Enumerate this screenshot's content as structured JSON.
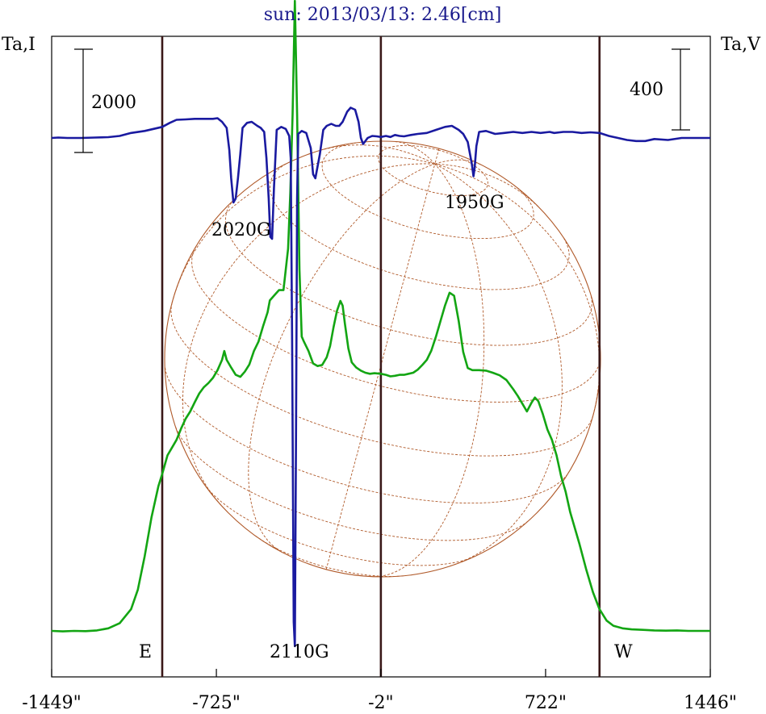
{
  "chart_data": {
    "type": "line",
    "title": "sun: 2013/03/13: 2.46[cm]",
    "ylabel_left": "Ta,I",
    "ylabel_right": "Ta,V",
    "xlim": [
      -1449,
      1446
    ],
    "x_ticks": [
      {
        "value": -1449,
        "label": "-1449\""
      },
      {
        "value": -725,
        "label": "-725\""
      },
      {
        "value": -2,
        "label": "-2\""
      },
      {
        "value": 722,
        "label": "722\""
      },
      {
        "value": 1446,
        "label": "1446\""
      }
    ],
    "limb_lines_x": [
      -963,
      -2,
      959
    ],
    "limb_labels": {
      "east": "E",
      "west": "W"
    },
    "scale_bars": {
      "intensity": {
        "label": "2000",
        "value": 2000
      },
      "polarization": {
        "label": "400",
        "value": 400
      }
    },
    "annotations": [
      {
        "text": "2020G",
        "x": -640
      },
      {
        "text": "1950G",
        "x": 440
      },
      {
        "text": "2110G",
        "x": -350
      }
    ],
    "colors": {
      "intensity": "#13a513",
      "polarization": "#1a1aa0",
      "limb_line": "#3a1818",
      "disk": "#b05a2a",
      "title": "#1a1a8c"
    },
    "series": [
      {
        "key": "intensity",
        "units": "relative (scale bar 2000)",
        "points": [
          [
            -1449,
            0
          ],
          [
            -1400,
            -10
          ],
          [
            -1350,
            0
          ],
          [
            -1300,
            -5
          ],
          [
            -1250,
            10
          ],
          [
            -1200,
            50
          ],
          [
            -1150,
            150
          ],
          [
            -1100,
            420
          ],
          [
            -1070,
            800
          ],
          [
            -1040,
            1450
          ],
          [
            -1010,
            2200
          ],
          [
            -980,
            2800
          ],
          [
            -963,
            3040
          ],
          [
            -940,
            3400
          ],
          [
            -920,
            3550
          ],
          [
            -900,
            3700
          ],
          [
            -880,
            3920
          ],
          [
            -860,
            4110
          ],
          [
            -840,
            4250
          ],
          [
            -820,
            4430
          ],
          [
            -800,
            4600
          ],
          [
            -780,
            4720
          ],
          [
            -760,
            4800
          ],
          [
            -740,
            4900
          ],
          [
            -720,
            5050
          ],
          [
            -700,
            5250
          ],
          [
            -690,
            5420
          ],
          [
            -680,
            5250
          ],
          [
            -660,
            5100
          ],
          [
            -640,
            4960
          ],
          [
            -620,
            4920
          ],
          [
            -600,
            5020
          ],
          [
            -580,
            5160
          ],
          [
            -560,
            5420
          ],
          [
            -540,
            5600
          ],
          [
            -520,
            5900
          ],
          [
            -500,
            6170
          ],
          [
            -490,
            6400
          ],
          [
            -470,
            6500
          ],
          [
            -450,
            6600
          ],
          [
            -430,
            6600
          ],
          [
            -410,
            7400
          ],
          [
            -400,
            8500
          ],
          [
            -390,
            10000
          ],
          [
            -380,
            12200
          ],
          [
            -370,
            10000
          ],
          [
            -360,
            7000
          ],
          [
            -350,
            5700
          ],
          [
            -340,
            5600
          ],
          [
            -320,
            5420
          ],
          [
            -300,
            5180
          ],
          [
            -280,
            5130
          ],
          [
            -260,
            5150
          ],
          [
            -240,
            5300
          ],
          [
            -225,
            5520
          ],
          [
            -210,
            5880
          ],
          [
            -195,
            6200
          ],
          [
            -180,
            6390
          ],
          [
            -170,
            6300
          ],
          [
            -160,
            5950
          ],
          [
            -145,
            5470
          ],
          [
            -130,
            5200
          ],
          [
            -110,
            5100
          ],
          [
            -90,
            5040
          ],
          [
            -70,
            5000
          ],
          [
            -50,
            4980
          ],
          [
            -30,
            4990
          ],
          [
            -2,
            4980
          ],
          [
            20,
            4960
          ],
          [
            40,
            4930
          ],
          [
            60,
            4940
          ],
          [
            80,
            4960
          ],
          [
            100,
            4960
          ],
          [
            120,
            4980
          ],
          [
            140,
            5000
          ],
          [
            160,
            5060
          ],
          [
            180,
            5150
          ],
          [
            200,
            5250
          ],
          [
            220,
            5430
          ],
          [
            240,
            5700
          ],
          [
            260,
            6000
          ],
          [
            280,
            6300
          ],
          [
            300,
            6550
          ],
          [
            320,
            6490
          ],
          [
            340,
            6000
          ],
          [
            360,
            5400
          ],
          [
            380,
            5090
          ],
          [
            400,
            5050
          ],
          [
            430,
            5050
          ],
          [
            460,
            5040
          ],
          [
            490,
            5000
          ],
          [
            520,
            4950
          ],
          [
            550,
            4860
          ],
          [
            580,
            4680
          ],
          [
            600,
            4550
          ],
          [
            620,
            4400
          ],
          [
            640,
            4250
          ],
          [
            660,
            4420
          ],
          [
            675,
            4520
          ],
          [
            690,
            4450
          ],
          [
            710,
            4200
          ],
          [
            730,
            3900
          ],
          [
            750,
            3700
          ],
          [
            770,
            3400
          ],
          [
            790,
            3000
          ],
          [
            810,
            2700
          ],
          [
            830,
            2300
          ],
          [
            850,
            2000
          ],
          [
            870,
            1700
          ],
          [
            900,
            1200
          ],
          [
            930,
            750
          ],
          [
            959,
            420
          ],
          [
            990,
            200
          ],
          [
            1020,
            100
          ],
          [
            1060,
            50
          ],
          [
            1100,
            30
          ],
          [
            1150,
            20
          ],
          [
            1200,
            10
          ],
          [
            1250,
            5
          ],
          [
            1300,
            10
          ],
          [
            1350,
            0
          ],
          [
            1400,
            0
          ],
          [
            1446,
            0
          ]
        ]
      },
      {
        "key": "polarization",
        "units": "relative (scale bar 400)",
        "points": [
          [
            -1449,
            0
          ],
          [
            -1420,
            2
          ],
          [
            -1380,
            0
          ],
          [
            -1320,
            0
          ],
          [
            -1260,
            2
          ],
          [
            -1200,
            4
          ],
          [
            -1150,
            10
          ],
          [
            -1100,
            25
          ],
          [
            -1040,
            35
          ],
          [
            -963,
            55
          ],
          [
            -930,
            75
          ],
          [
            -900,
            90
          ],
          [
            -860,
            92
          ],
          [
            -820,
            95
          ],
          [
            -780,
            95
          ],
          [
            -740,
            95
          ],
          [
            -720,
            98
          ],
          [
            -700,
            80
          ],
          [
            -680,
            50
          ],
          [
            -668,
            -60
          ],
          [
            -660,
            -200
          ],
          [
            -650,
            -320
          ],
          [
            -640,
            -300
          ],
          [
            -630,
            -200
          ],
          [
            -620,
            -80
          ],
          [
            -610,
            50
          ],
          [
            -590,
            75
          ],
          [
            -570,
            80
          ],
          [
            -545,
            60
          ],
          [
            -530,
            50
          ],
          [
            -515,
            30
          ],
          [
            -505,
            -100
          ],
          [
            -495,
            -300
          ],
          [
            -488,
            -490
          ],
          [
            -480,
            -500
          ],
          [
            -472,
            -250
          ],
          [
            -460,
            40
          ],
          [
            -440,
            55
          ],
          [
            -420,
            45
          ],
          [
            -405,
            10
          ],
          [
            -398,
            -100
          ],
          [
            -392,
            -1000
          ],
          [
            -385,
            -2400
          ],
          [
            -380,
            -2520
          ],
          [
            -375,
            -1500
          ],
          [
            -370,
            -300
          ],
          [
            -365,
            20
          ],
          [
            -350,
            35
          ],
          [
            -330,
            25
          ],
          [
            -310,
            -50
          ],
          [
            -300,
            -180
          ],
          [
            -290,
            -200
          ],
          [
            -270,
            -80
          ],
          [
            -255,
            40
          ],
          [
            -240,
            60
          ],
          [
            -220,
            70
          ],
          [
            -200,
            60
          ],
          [
            -185,
            60
          ],
          [
            -170,
            80
          ],
          [
            -150,
            130
          ],
          [
            -135,
            150
          ],
          [
            -115,
            140
          ],
          [
            -100,
            80
          ],
          [
            -90,
            0
          ],
          [
            -80,
            -30
          ],
          [
            -60,
            0
          ],
          [
            -40,
            10
          ],
          [
            -20,
            8
          ],
          [
            -2,
            5
          ],
          [
            20,
            10
          ],
          [
            40,
            5
          ],
          [
            60,
            15
          ],
          [
            80,
            10
          ],
          [
            100,
            8
          ],
          [
            130,
            15
          ],
          [
            160,
            20
          ],
          [
            200,
            25
          ],
          [
            240,
            40
          ],
          [
            280,
            55
          ],
          [
            310,
            60
          ],
          [
            340,
            40
          ],
          [
            360,
            20
          ],
          [
            380,
            -20
          ],
          [
            398,
            -130
          ],
          [
            405,
            -190
          ],
          [
            410,
            -150
          ],
          [
            418,
            -40
          ],
          [
            430,
            30
          ],
          [
            460,
            35
          ],
          [
            500,
            20
          ],
          [
            540,
            25
          ],
          [
            580,
            30
          ],
          [
            620,
            25
          ],
          [
            660,
            30
          ],
          [
            700,
            25
          ],
          [
            740,
            30
          ],
          [
            760,
            25
          ],
          [
            800,
            30
          ],
          [
            840,
            30
          ],
          [
            880,
            25
          ],
          [
            920,
            28
          ],
          [
            959,
            25
          ],
          [
            1000,
            10
          ],
          [
            1040,
            0
          ],
          [
            1080,
            -10
          ],
          [
            1120,
            -15
          ],
          [
            1160,
            -15
          ],
          [
            1200,
            -5
          ],
          [
            1260,
            -10
          ],
          [
            1320,
            0
          ],
          [
            1380,
            0
          ],
          [
            1446,
            0
          ]
        ]
      }
    ]
  }
}
